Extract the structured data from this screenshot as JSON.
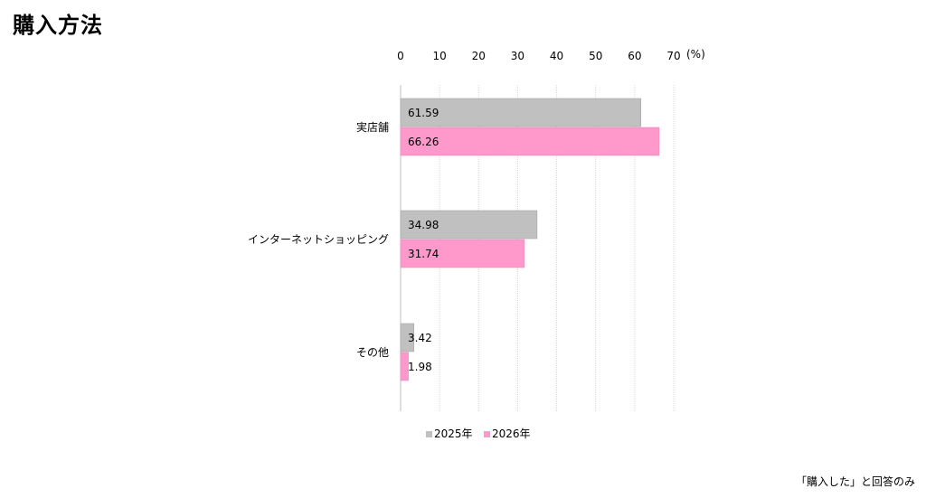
{
  "page": {
    "title": "購入方法",
    "footnote": "「購入した」と回答のみ"
  },
  "chart_data": {
    "type": "bar",
    "orientation": "horizontal",
    "categories": [
      "実店舗",
      "インターネットショッピング",
      "その他"
    ],
    "series": [
      {
        "name": "2025年",
        "color": "#c0c0c0",
        "values": [
          61.59,
          34.98,
          3.42
        ],
        "labels": [
          "61.59",
          "34.98",
          "3.42"
        ]
      },
      {
        "name": "2026年",
        "color": "#ff99cc",
        "values": [
          66.26,
          31.74,
          1.98
        ],
        "labels": [
          "66.26",
          "31.74",
          "1.98"
        ]
      }
    ],
    "xlim": [
      0,
      70
    ],
    "ticks": [
      0,
      10,
      20,
      30,
      40,
      50,
      60,
      70
    ],
    "unit_label": "(%)",
    "axis_position": "top",
    "grid": true,
    "legend_position": "bottom"
  }
}
